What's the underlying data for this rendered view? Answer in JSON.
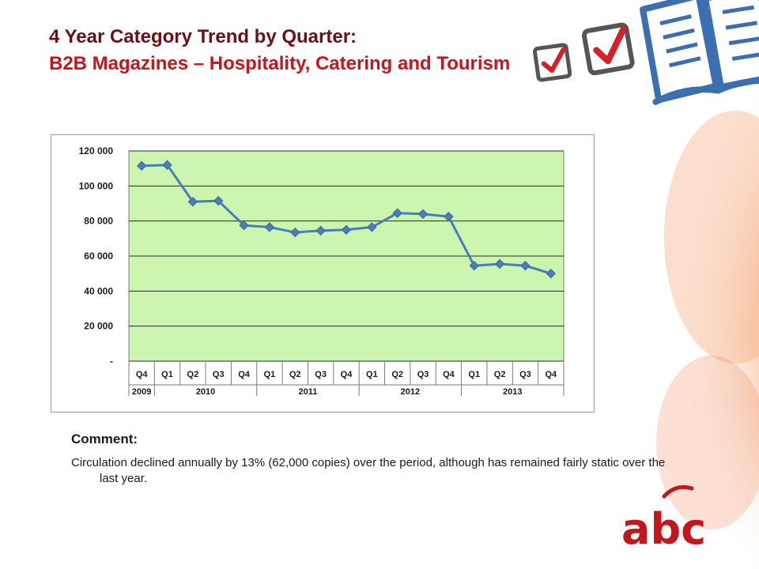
{
  "title": {
    "line1": "4 Year Category Trend by Quarter:",
    "line2": "B2B Magazines – Hospitality, Catering and Tourism"
  },
  "comment": {
    "heading": "Comment:",
    "text": "Circulation declined annually by 13% (62,000 copies) over the period,  although has remained fairly static over the last year."
  },
  "logo": {
    "text": "abc",
    "color": "#c4161c"
  },
  "colors": {
    "plot_bg": "#ccf5b0",
    "line": "#4a7ebb",
    "title_dark": "#6b1014",
    "title_red": "#c4161c"
  },
  "icons": [
    "checkbox-check-icon",
    "checkbox-check-large-icon",
    "open-book-icon"
  ],
  "chart_data": {
    "type": "line",
    "title": "",
    "xlabel": "",
    "ylabel": "",
    "ylim": [
      0,
      120000
    ],
    "yticks": [
      0,
      20000,
      40000,
      60000,
      80000,
      100000,
      120000
    ],
    "ytick_labels": [
      "-",
      "20 000",
      "40 000",
      "60 000",
      "80 000",
      "100 000",
      "120 000"
    ],
    "categories": [
      "Q4",
      "Q1",
      "Q2",
      "Q3",
      "Q4",
      "Q1",
      "Q2",
      "Q3",
      "Q4",
      "Q1",
      "Q2",
      "Q3",
      "Q4",
      "Q1",
      "Q2",
      "Q3",
      "Q4"
    ],
    "year_groups": [
      {
        "label": "2009",
        "count": 1
      },
      {
        "label": "2010",
        "count": 4
      },
      {
        "label": "2011",
        "count": 4
      },
      {
        "label": "2012",
        "count": 4
      },
      {
        "label": "2013",
        "count": 4
      }
    ],
    "series": [
      {
        "values": [
          111500,
          112000,
          91000,
          91500,
          77500,
          76500,
          73500,
          74500,
          75000,
          76500,
          84500,
          84000,
          82500,
          54500,
          55500,
          54500,
          50000
        ]
      }
    ],
    "grid": true,
    "legend": "none"
  }
}
